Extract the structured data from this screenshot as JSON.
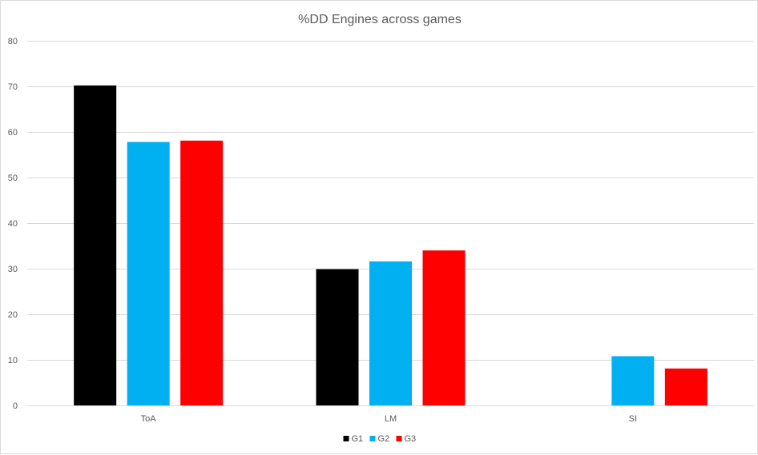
{
  "chart_data": {
    "type": "bar",
    "title": "%DD Engines across games",
    "xlabel": "",
    "ylabel": "",
    "categories": [
      "ToA",
      "LM",
      "SI"
    ],
    "series": [
      {
        "name": "G1",
        "color": "#000000",
        "values": [
          70.2,
          29.9,
          0
        ]
      },
      {
        "name": "G2",
        "color": "#00b0f0",
        "values": [
          57.8,
          31.6,
          10.8
        ]
      },
      {
        "name": "G3",
        "color": "#ff0000",
        "values": [
          58.1,
          34.0,
          8.1
        ]
      }
    ],
    "ylim": [
      0,
      80
    ],
    "yticks": [
      0,
      10,
      20,
      30,
      40,
      50,
      60,
      70,
      80
    ],
    "grid": true,
    "legend_position": "bottom"
  }
}
